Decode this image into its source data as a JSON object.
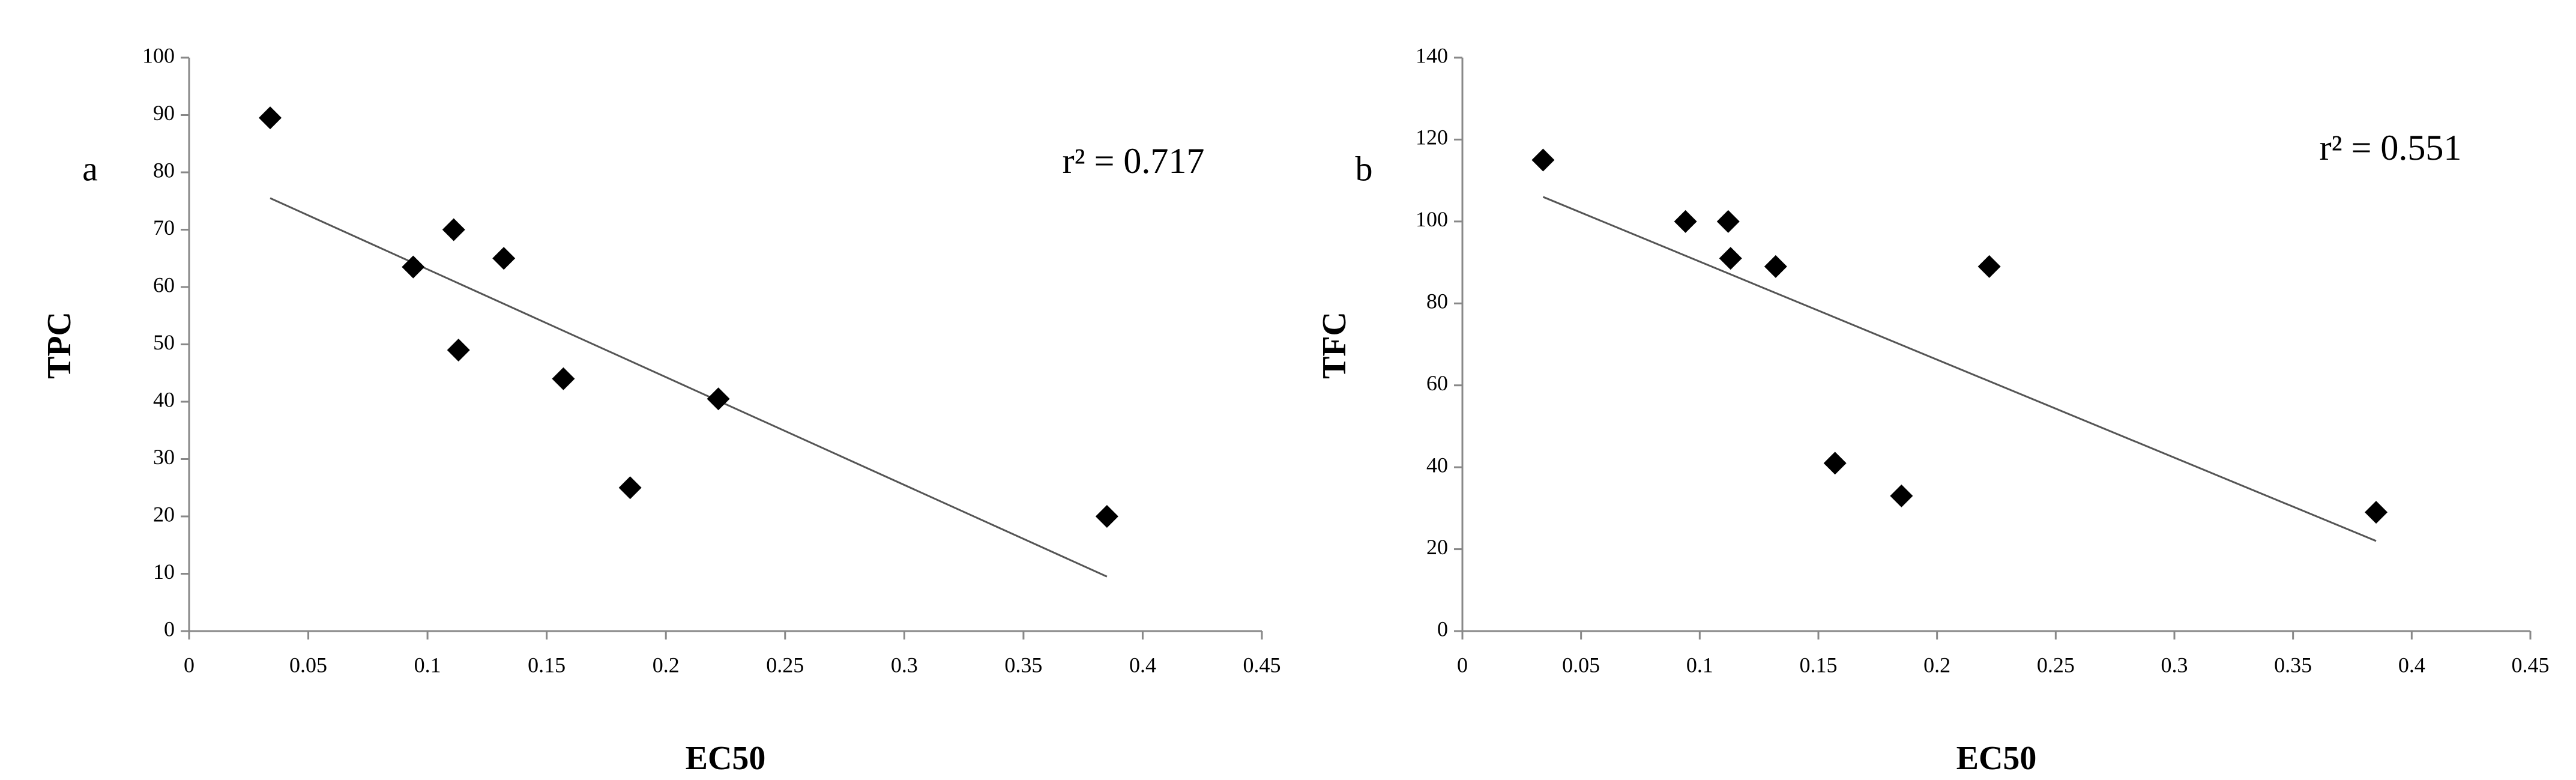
{
  "chart_data": [
    {
      "type": "scatter",
      "panel_label": "a",
      "annotation": "r² = 0.717",
      "x_label": "EC50",
      "y_label": "TPC",
      "x": [
        0.034,
        0.094,
        0.111,
        0.113,
        0.132,
        0.157,
        0.185,
        0.222,
        0.385
      ],
      "values": [
        89.5,
        63.5,
        70,
        49,
        65,
        44,
        25,
        40.5,
        20
      ],
      "color": "#000000",
      "trendline": {
        "x": [
          0.034,
          0.385
        ],
        "values": [
          75.5,
          9.5
        ]
      },
      "xlim": [
        0,
        0.45
      ],
      "xticks": [
        0,
        0.05,
        0.1,
        0.15,
        0.2,
        0.25,
        0.3,
        0.35,
        0.4,
        0.45
      ],
      "ylim": [
        0,
        100
      ],
      "yticks": [
        0,
        10,
        20,
        30,
        40,
        50,
        60,
        70,
        80,
        90,
        100
      ],
      "grid": false
    },
    {
      "type": "scatter",
      "panel_label": "b",
      "annotation": "r² = 0.551",
      "x_label": "EC50",
      "y_label": "TFC",
      "x": [
        0.034,
        0.094,
        0.112,
        0.113,
        0.132,
        0.157,
        0.185,
        0.222,
        0.385
      ],
      "values": [
        115,
        100,
        100,
        91,
        89,
        41,
        33,
        89,
        29
      ],
      "color": "#000000",
      "trendline": {
        "x": [
          0.034,
          0.385
        ],
        "values": [
          106,
          22
        ]
      },
      "xlim": [
        0,
        0.45
      ],
      "xticks": [
        0,
        0.05,
        0.1,
        0.15,
        0.2,
        0.25,
        0.3,
        0.35,
        0.4,
        0.45
      ],
      "ylim": [
        0,
        140
      ],
      "yticks": [
        0,
        20,
        40,
        60,
        80,
        100,
        120,
        140
      ],
      "grid": false
    }
  ]
}
